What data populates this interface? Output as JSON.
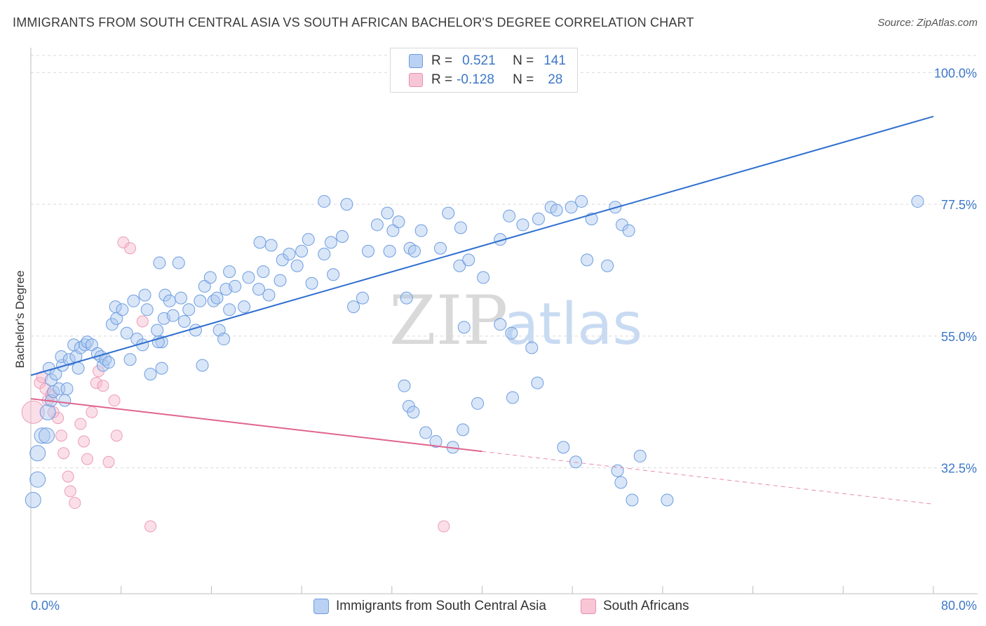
{
  "title": "IMMIGRANTS FROM SOUTH CENTRAL ASIA VS SOUTH AFRICAN BACHELOR'S DEGREE CORRELATION CHART",
  "source": "Source: ZipAtlas.com",
  "watermark": {
    "zip": "ZIP",
    "atlas": "atlas"
  },
  "legend": {
    "rows": [
      {
        "r_label": "R =",
        "r_value": "0.521",
        "n_label": "N =",
        "n_value": "141"
      },
      {
        "r_label": "R =",
        "r_value": "-0.128",
        "n_label": "N =",
        "n_value": "28"
      }
    ]
  },
  "bottom_legend": {
    "blue": "Immigrants from South Central Asia",
    "pink": "South Africans"
  },
  "colors": {
    "blue": "#4f86d6",
    "blue_fill": "#aac8f0",
    "pink": "#e0648e",
    "pink_fill": "#f6b9cc",
    "tick_text": "#3d78c8"
  },
  "chart_data": {
    "type": "scatter",
    "title": "IMMIGRANTS FROM SOUTH CENTRAL ASIA VS SOUTH AFRICAN BACHELOR'S DEGREE CORRELATION CHART",
    "xlabel": "",
    "ylabel": "Bachelor's Degree",
    "xlim": [
      0,
      80
    ],
    "ylim": [
      11,
      104
    ],
    "x_tick_labels": [
      "0.0%",
      "80.0%"
    ],
    "y_ticks": [
      32.5,
      55.0,
      77.5,
      100.0
    ],
    "y_tick_labels": [
      "32.5%",
      "55.0%",
      "77.5%",
      "100.0%"
    ],
    "grid": true,
    "legend_position": "top-center",
    "series": [
      {
        "name": "Immigrants from South Central Asia",
        "color": "#4f86d6",
        "trend": {
          "x": [
            0,
            80
          ],
          "y": [
            48.3,
            92.5
          ]
        },
        "points": [
          [
            0.2,
            27
          ],
          [
            0.6,
            30.5
          ],
          [
            0.6,
            35
          ],
          [
            1.0,
            38
          ],
          [
            1.4,
            38
          ],
          [
            1.5,
            42
          ],
          [
            1.8,
            44
          ],
          [
            2.0,
            45.5
          ],
          [
            1.6,
            49.5
          ],
          [
            2.5,
            46
          ],
          [
            1.8,
            47.5
          ],
          [
            2.2,
            48.5
          ],
          [
            3.0,
            44
          ],
          [
            3.2,
            46
          ],
          [
            2.8,
            50
          ],
          [
            2.7,
            51.5
          ],
          [
            3.4,
            51
          ],
          [
            4.0,
            51.5
          ],
          [
            3.8,
            53.5
          ],
          [
            4.4,
            53
          ],
          [
            4.2,
            49.5
          ],
          [
            4.8,
            53.5
          ],
          [
            5.0,
            54
          ],
          [
            5.4,
            53.5
          ],
          [
            5.9,
            52
          ],
          [
            6.2,
            51.5
          ],
          [
            6.4,
            50
          ],
          [
            6.6,
            51
          ],
          [
            6.9,
            50.5
          ],
          [
            7.2,
            57
          ],
          [
            7.5,
            60
          ],
          [
            7.6,
            58
          ],
          [
            8.1,
            59.5
          ],
          [
            8.5,
            55.5
          ],
          [
            8.8,
            51
          ],
          [
            9.4,
            54.5
          ],
          [
            9.1,
            61
          ],
          [
            10.1,
            62
          ],
          [
            9.9,
            53.5
          ],
          [
            10.3,
            59.5
          ],
          [
            10.6,
            48.5
          ],
          [
            11.2,
            56
          ],
          [
            11.4,
            67.5
          ],
          [
            11.6,
            54
          ],
          [
            11.8,
            58
          ],
          [
            11.9,
            62
          ],
          [
            12.3,
            61
          ],
          [
            11.3,
            54
          ],
          [
            11.6,
            49.5
          ],
          [
            12.6,
            58.5
          ],
          [
            13.3,
            61.5
          ],
          [
            13.1,
            67.5
          ],
          [
            13.6,
            57.5
          ],
          [
            14.0,
            59.5
          ],
          [
            14.6,
            56
          ],
          [
            15.0,
            61
          ],
          [
            15.4,
            63.5
          ],
          [
            15.9,
            65
          ],
          [
            16.2,
            61
          ],
          [
            16.5,
            61.5
          ],
          [
            15.2,
            50
          ],
          [
            16.7,
            56
          ],
          [
            17.1,
            54.5
          ],
          [
            17.3,
            63
          ],
          [
            17.6,
            66
          ],
          [
            18.1,
            63.5
          ],
          [
            17.6,
            59.5
          ],
          [
            18.9,
            60
          ],
          [
            19.3,
            65
          ],
          [
            20.6,
            66
          ],
          [
            20.2,
            63
          ],
          [
            20.3,
            71
          ],
          [
            21.1,
            62
          ],
          [
            21.3,
            70.5
          ],
          [
            22.1,
            64.5
          ],
          [
            22.3,
            68
          ],
          [
            22.9,
            69
          ],
          [
            23.6,
            67
          ],
          [
            24.0,
            69.5
          ],
          [
            24.6,
            71.5
          ],
          [
            24.9,
            64
          ],
          [
            26.0,
            69
          ],
          [
            26.6,
            71
          ],
          [
            26.0,
            78
          ],
          [
            28.0,
            77.5
          ],
          [
            27.6,
            72
          ],
          [
            26.8,
            65.5
          ],
          [
            28.6,
            60
          ],
          [
            29.4,
            61.5
          ],
          [
            29.9,
            69.5
          ],
          [
            30.7,
            74
          ],
          [
            31.6,
            76
          ],
          [
            31.8,
            69.5
          ],
          [
            32.1,
            73
          ],
          [
            32.6,
            74.5
          ],
          [
            33.6,
            70
          ],
          [
            33.3,
            61.5
          ],
          [
            34.0,
            69.5
          ],
          [
            34.6,
            73
          ],
          [
            36.3,
            70
          ],
          [
            37.0,
            76
          ],
          [
            38.1,
            73.5
          ],
          [
            38.0,
            67
          ],
          [
            38.4,
            56.5
          ],
          [
            38.8,
            68
          ],
          [
            40.1,
            65
          ],
          [
            41.6,
            71.5
          ],
          [
            42.4,
            75.5
          ],
          [
            43.6,
            74
          ],
          [
            45.0,
            75
          ],
          [
            46.1,
            77
          ],
          [
            46.6,
            76.5
          ],
          [
            47.9,
            77
          ],
          [
            48.8,
            78
          ],
          [
            49.3,
            68
          ],
          [
            49.7,
            75
          ],
          [
            51.1,
            67
          ],
          [
            51.8,
            77
          ],
          [
            52.4,
            74
          ],
          [
            53.0,
            73
          ],
          [
            33.1,
            46.5
          ],
          [
            33.5,
            43
          ],
          [
            33.9,
            42
          ],
          [
            35.0,
            38.5
          ],
          [
            35.9,
            37
          ],
          [
            37.4,
            36
          ],
          [
            38.3,
            39
          ],
          [
            39.6,
            43.5
          ],
          [
            41.6,
            57
          ],
          [
            42.7,
            44.5
          ],
          [
            44.9,
            47
          ],
          [
            44.4,
            53
          ],
          [
            42.6,
            55.5
          ],
          [
            47.2,
            36
          ],
          [
            48.3,
            33.5
          ],
          [
            52.0,
            32
          ],
          [
            52.3,
            30
          ],
          [
            53.3,
            27
          ],
          [
            56.4,
            27
          ],
          [
            54.0,
            34.5
          ],
          [
            78.6,
            78
          ]
        ]
      },
      {
        "name": "South Africans",
        "color": "#e0648e",
        "trend": {
          "x": [
            0,
            40
          ],
          "y": [
            44.3,
            35.3
          ]
        },
        "trend_extension": {
          "x": [
            40,
            80
          ],
          "y": [
            35.3,
            26.3
          ]
        },
        "points": [
          [
            0.2,
            42
          ],
          [
            0.8,
            47
          ],
          [
            1.0,
            48
          ],
          [
            1.3,
            46
          ],
          [
            1.5,
            44
          ],
          [
            1.8,
            45
          ],
          [
            2.0,
            42
          ],
          [
            2.4,
            41
          ],
          [
            2.7,
            38
          ],
          [
            2.9,
            35
          ],
          [
            3.3,
            31
          ],
          [
            3.5,
            28.5
          ],
          [
            3.9,
            26.5
          ],
          [
            4.4,
            40
          ],
          [
            4.7,
            37
          ],
          [
            5.0,
            34
          ],
          [
            5.4,
            42
          ],
          [
            5.8,
            47
          ],
          [
            6.0,
            49
          ],
          [
            6.4,
            46.5
          ],
          [
            6.9,
            33.5
          ],
          [
            7.4,
            44
          ],
          [
            7.6,
            38
          ],
          [
            8.2,
            71
          ],
          [
            8.8,
            70
          ],
          [
            9.9,
            57.5
          ],
          [
            10.6,
            22.5
          ],
          [
            36.6,
            22.5
          ]
        ]
      }
    ]
  }
}
